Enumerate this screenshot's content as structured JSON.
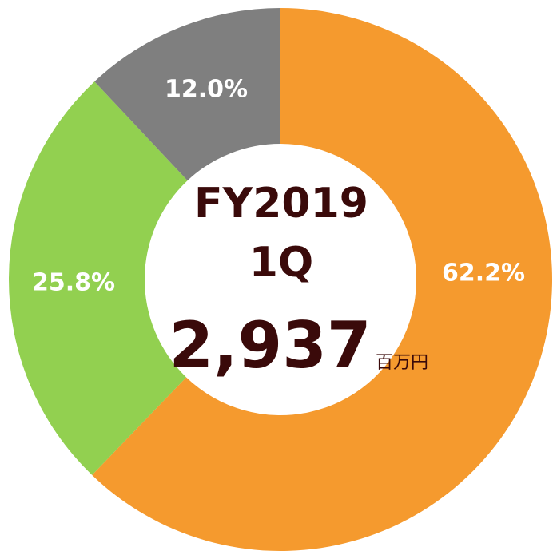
{
  "chart_data": {
    "type": "donut",
    "categories": [
      null,
      null,
      null
    ],
    "values": [
      62.2,
      25.8,
      12.0
    ],
    "value_labels": [
      "62.2%",
      "25.8%",
      "12.0%"
    ],
    "colors": [
      "#f59a2e",
      "#92d050",
      "#7f7f7f"
    ],
    "annotations": [
      "FY2019",
      "1Q",
      "2,937",
      "百万円"
    ]
  }
}
